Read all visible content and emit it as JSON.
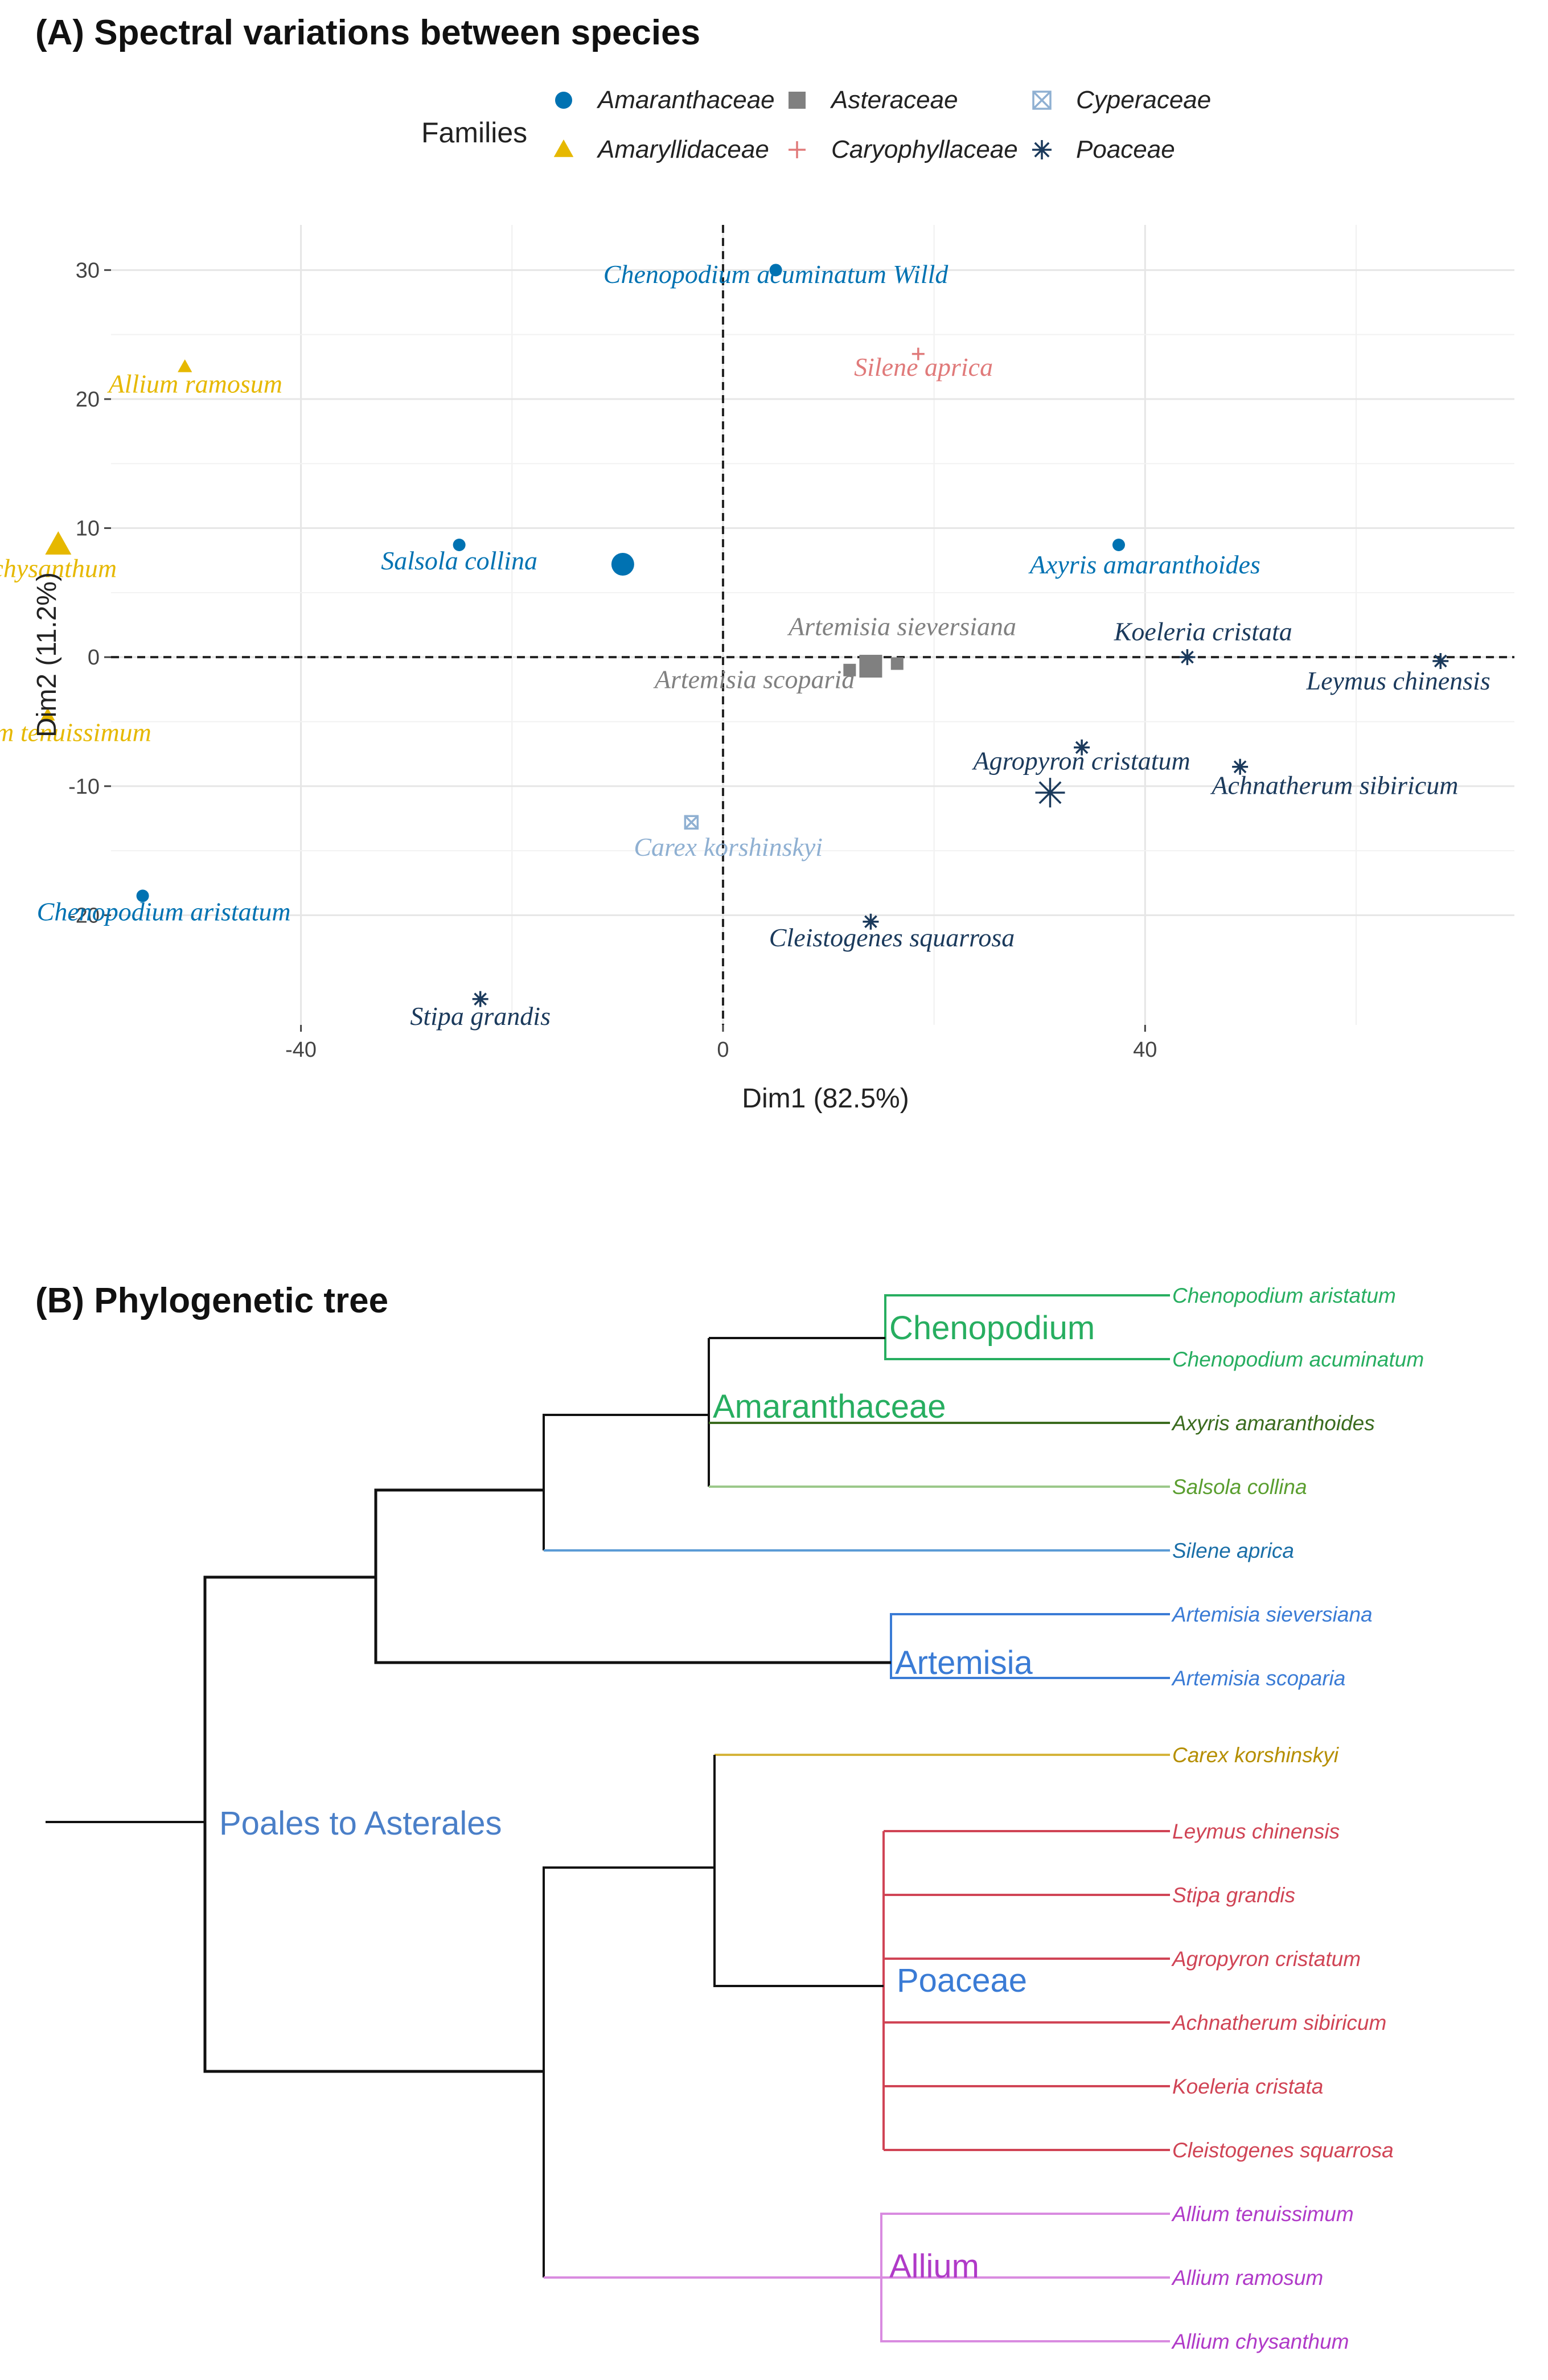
{
  "chart_data": [
    {
      "type": "scatter",
      "title": "(A) Spectral variations between species",
      "xlabel": "Dim1 (82.5%)",
      "ylabel": "Dim2 (11.2%)",
      "xlim": [
        -58,
        75
      ],
      "ylim": [
        -28.5,
        33.5
      ],
      "xticks": [
        -40,
        0,
        40
      ],
      "yticks": [
        -20,
        -10,
        0,
        10,
        20,
        30
      ],
      "grid": true,
      "legend": {
        "title": "Families",
        "position": "top",
        "entries": [
          {
            "name": "Amaranthaceae",
            "marker": "circle",
            "color": "#0072B2"
          },
          {
            "name": "Asteraceae",
            "marker": "square",
            "color": "#808080"
          },
          {
            "name": "Cyperaceae",
            "marker": "boxx",
            "color": "#8FB0D2"
          },
          {
            "name": "Amaryllidaceae",
            "marker": "triangle",
            "color": "#E6B800"
          },
          {
            "name": "Caryophyllaceae",
            "marker": "plus",
            "color": "#E07A7A"
          },
          {
            "name": "Poaceae",
            "marker": "star",
            "color": "#1B3A5C"
          }
        ]
      },
      "points": [
        {
          "family": "Amaranthaceae",
          "x": 5,
          "y": 30,
          "label": "Chenopodium acuminatum Willd",
          "lx": 5,
          "ly": 29
        },
        {
          "family": "Caryophyllaceae",
          "x": 18.5,
          "y": 23.5,
          "label": "Silene aprica",
          "lx": 19,
          "ly": 21.8
        },
        {
          "family": "Amaryllidaceae",
          "x": -51,
          "y": 22.5,
          "label": "Allium ramosum",
          "lx": -50,
          "ly": 20.5
        },
        {
          "family": "Amaranthaceae",
          "x": -25,
          "y": 8.7,
          "label": "Salsola collina",
          "lx": -25,
          "ly": 6.8
        },
        {
          "family": "Amaranthaceae",
          "x": 37.5,
          "y": 8.7,
          "label": "Axyris amaranthoides",
          "lx": 40,
          "ly": 6.5
        },
        {
          "family": "Amaryllidaceae",
          "x": -71,
          "y": 8,
          "label": "Allium chysanthum",
          "lx": -67,
          "ly": 6.2
        },
        {
          "family": "Amaryllidaceae",
          "x": -64,
          "y": -4.5,
          "label": "Allium tenuissimum",
          "lx": -64,
          "ly": -6.5
        },
        {
          "family": "Asteraceae",
          "x": 12,
          "y": -1,
          "label": "Artemisia sieversiana",
          "lx": 17,
          "ly": 1.7
        },
        {
          "family": "Asteraceae",
          "x": 16.5,
          "y": -0.5,
          "label": "Artemisia scoparia",
          "lx": 3,
          "ly": -2.4
        },
        {
          "family": "Poaceae",
          "x": 44,
          "y": 0,
          "label": "Koeleria cristata",
          "lx": 45.5,
          "ly": 1.3
        },
        {
          "family": "Poaceae",
          "x": 68,
          "y": -0.3,
          "label": "Leymus chinensis",
          "lx": 64,
          "ly": -2.5
        },
        {
          "family": "Poaceae",
          "x": 34,
          "y": -7,
          "label": "Agropyron cristatum",
          "lx": 34,
          "ly": -8.7
        },
        {
          "family": "Poaceae",
          "x": 49,
          "y": -8.5,
          "label": "Achnatherum sibiricum",
          "lx": 58,
          "ly": -10.6
        },
        {
          "family": "Cyperaceae",
          "x": -3,
          "y": -12.8,
          "label": "Carex  korshinskyi",
          "lx": 0.5,
          "ly": -15.4
        },
        {
          "family": "Amaranthaceae",
          "x": -55,
          "y": -18.5,
          "label": "Chenopodium aristatum",
          "lx": -53,
          "ly": -20.4
        },
        {
          "family": "Poaceae",
          "x": 14,
          "y": -20.5,
          "label": "Cleistogenes squarrosa",
          "lx": 16,
          "ly": -22.4
        },
        {
          "family": "Poaceae",
          "x": -23,
          "y": -26.5,
          "label": "Stipa grandis",
          "lx": -23,
          "ly": -28.5
        }
      ],
      "centroids": [
        {
          "family": "Amaranthaceae",
          "x": -9.5,
          "y": 7.2
        },
        {
          "family": "Amaryllidaceae",
          "x": -63,
          "y": 8.7
        },
        {
          "family": "Asteraceae",
          "x": 14,
          "y": -0.7
        },
        {
          "family": "Poaceae",
          "x": 31,
          "y": -10.5
        }
      ]
    },
    {
      "type": "tree",
      "title": "(B) Phylogenetic tree",
      "leaves": [
        {
          "name": "Chenopodium aristatum",
          "color": "#27AE60"
        },
        {
          "name": "Chenopodium acuminatum",
          "color": "#27AE60"
        },
        {
          "name": "Axyris amaranthoides",
          "color": "#3A6B1E"
        },
        {
          "name": "Salsola collina",
          "color": "#5A9E2F"
        },
        {
          "name": "Silene aprica",
          "color": "#1A6FA8"
        },
        {
          "name": "Artemisia sieversiana",
          "color": "#3A7BD5"
        },
        {
          "name": "Artemisia scoparia",
          "color": "#3A7BD5"
        },
        {
          "name": "Carex  korshinskyi",
          "color": "#B58E00"
        },
        {
          "name": "Leymus chinensis",
          "color": "#D04455"
        },
        {
          "name": "Stipa grandis",
          "color": "#D04455"
        },
        {
          "name": "Agropyron cristatum",
          "color": "#D04455"
        },
        {
          "name": "Achnatherum sibiricum",
          "color": "#D04455"
        },
        {
          "name": "Koeleria cristata",
          "color": "#D04455"
        },
        {
          "name": "Cleistogenes squarrosa",
          "color": "#D04455"
        },
        {
          "name": "Allium tenuissimum",
          "color": "#B03AC8"
        },
        {
          "name": "Allium ramosum",
          "color": "#B03AC8"
        },
        {
          "name": "Allium chysanthum",
          "color": "#B03AC8"
        }
      ],
      "clades": [
        {
          "name": "Chenopodium",
          "color": "#27AE60"
        },
        {
          "name": "Amaranthaceae",
          "color": "#27AE60"
        },
        {
          "name": "Artemisia",
          "color": "#3A7BD5"
        },
        {
          "name": "Poales to Asterales",
          "color": "#4A7FC8"
        },
        {
          "name": "Poaceae",
          "color": "#3A7BD5"
        },
        {
          "name": "Allium",
          "color": "#B03AC8"
        }
      ]
    }
  ]
}
